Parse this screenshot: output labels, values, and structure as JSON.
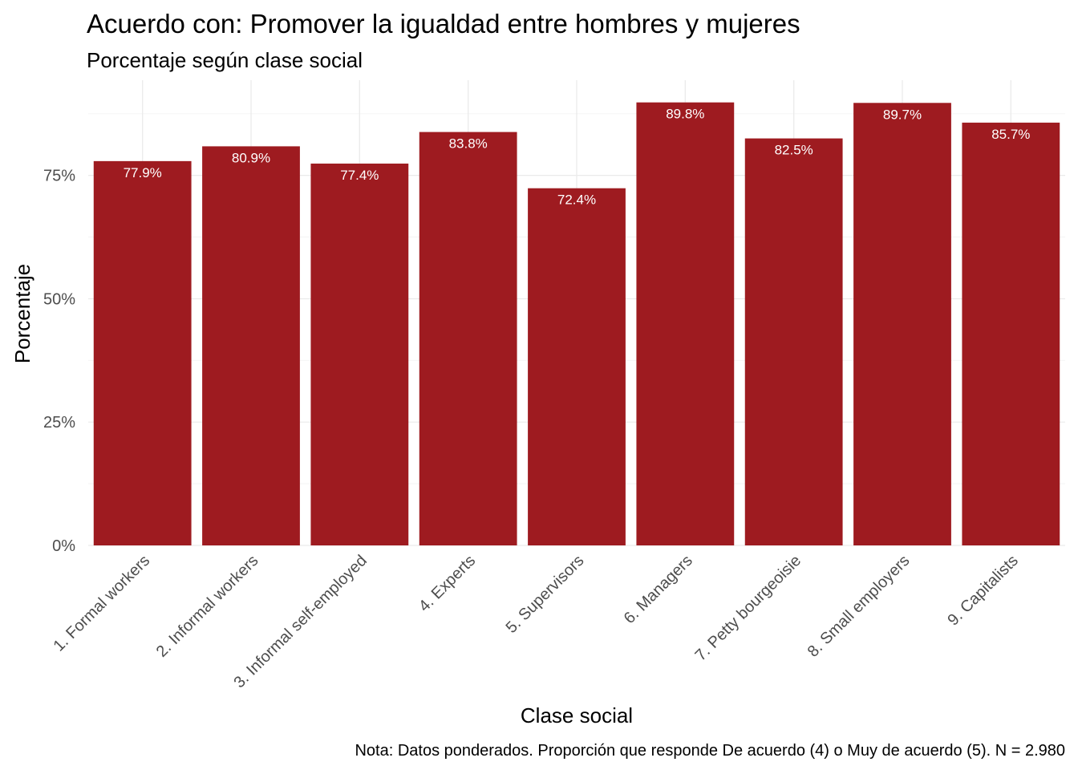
{
  "chart_data": {
    "type": "bar",
    "title": "Acuerdo con: Promover la igualdad entre hombres y mujeres",
    "subtitle": "Porcentaje según clase social",
    "xlabel": "Clase social",
    "ylabel": "Porcentaje",
    "caption": "Nota: Datos ponderados. Proporción que responde De acuerdo (4) o Muy de acuerdo (5). N = 2.980",
    "categories": [
      "1. Formal workers",
      "2. Informal workers",
      "3. Informal self-employed",
      "4. Experts",
      "5. Supervisors",
      "6. Managers",
      "7. Petty bourgeoisie",
      "8. Small employers",
      "9. Capitalists"
    ],
    "values": [
      77.9,
      80.9,
      77.4,
      83.8,
      72.4,
      89.8,
      82.5,
      89.7,
      85.7
    ],
    "value_labels": [
      "77.9%",
      "80.9%",
      "77.4%",
      "83.8%",
      "72.4%",
      "89.8%",
      "82.5%",
      "89.7%",
      "85.7%"
    ],
    "yticks": [
      0,
      25,
      50,
      75
    ],
    "ytick_labels": [
      "0%",
      "25%",
      "50%",
      "75%"
    ],
    "ylim": [
      0,
      94.3
    ],
    "bar_color": "#9E1B20",
    "grid": true,
    "legend": "none"
  }
}
